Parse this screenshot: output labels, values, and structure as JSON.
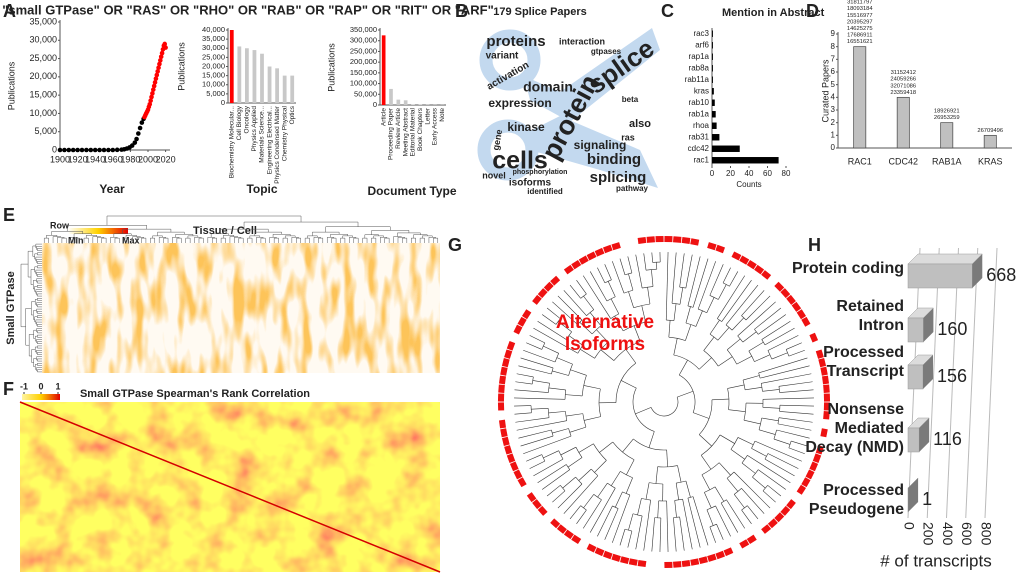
{
  "panels": [
    "A",
    "B",
    "C",
    "D",
    "E",
    "F",
    "G",
    "H"
  ],
  "chart_data": [
    {
      "type": "scatter",
      "title": "\"small GTPase\" OR \"RAS\" OR \"RHO\" OR \"RAB\" OR \"RAP\" OR \"RIT\" OR \"ARF\"",
      "x_label": "Year",
      "y_label": "Publications",
      "xlim": [
        1900,
        2025
      ],
      "xticks": [
        1900,
        1920,
        1940,
        1960,
        1980,
        2000,
        2020
      ],
      "ylim": [
        0,
        35000
      ],
      "yticks": [
        0,
        {
          "value": 5000,
          "label": "5,000"
        },
        {
          "value": 10000,
          "label": "10,000"
        },
        {
          "value": 15000,
          "label": "15,000"
        },
        {
          "value": 20000,
          "label": "20,000"
        },
        {
          "value": 25000,
          "label": "25,000"
        },
        {
          "value": 30000,
          "label": "30,000"
        },
        {
          "value": 35000,
          "label": "35,000"
        }
      ],
      "series": [
        {
          "color": "#000000",
          "x": [
            1900,
            1905,
            1910,
            1915,
            1920,
            1925,
            1930,
            1935,
            1940,
            1945,
            1950,
            1955,
            1960,
            1965,
            1970,
            1973,
            1976,
            1979,
            1982,
            1985,
            1987,
            1989,
            1991,
            1993,
            1995
          ],
          "values": [
            0,
            0,
            0,
            0,
            0,
            0,
            0,
            0,
            0,
            0,
            0,
            0,
            0,
            50,
            100,
            200,
            400,
            700,
            1200,
            2000,
            3000,
            4500,
            6000,
            7500,
            8500
          ]
        },
        {
          "color": "#ff0000",
          "x": [
            1996,
            1997,
            1998,
            1999,
            2000,
            2001,
            2002,
            2003,
            2004,
            2005,
            2006,
            2007,
            2008,
            2009,
            2010,
            2011,
            2012,
            2013,
            2014,
            2015,
            2016,
            2017,
            2018,
            2019,
            2020
          ],
          "values": [
            9000,
            9500,
            10000,
            10500,
            11000,
            11800,
            12500,
            13500,
            14500,
            15500,
            16500,
            17500,
            18500,
            19500,
            20500,
            21500,
            22500,
            23500,
            24500,
            25500,
            26500,
            27500,
            28500,
            29000,
            28000
          ]
        }
      ]
    },
    {
      "type": "bar",
      "x_label": "Topic",
      "y_label": "Publications",
      "categories": [
        "Biochemistry Molecular...",
        "Cell Biology",
        "Oncology",
        "Physics Applied",
        "Materials Science...",
        "Engineering Electrical...",
        "Physics Condensed Matter",
        "Chemistry Physical",
        "Optics"
      ],
      "values": [
        40000,
        31000,
        30000,
        29000,
        27000,
        20000,
        19000,
        15000,
        15000
      ],
      "colors": [
        "#ff0000",
        "#c8c8c8",
        "#c8c8c8",
        "#c8c8c8",
        "#c8c8c8",
        "#c8c8c8",
        "#c8c8c8",
        "#c8c8c8",
        "#c8c8c8"
      ],
      "ylim": [
        0,
        40000
      ],
      "yticks": [
        0,
        {
          "value": 5000,
          "label": "5,000"
        },
        {
          "value": 10000,
          "label": "10,000"
        },
        {
          "value": 15000,
          "label": "15,000"
        },
        {
          "value": 20000,
          "label": "20,000"
        },
        {
          "value": 25000,
          "label": "25,000"
        },
        {
          "value": 30000,
          "label": "30,000"
        },
        {
          "value": 35000,
          "label": "35,000"
        },
        {
          "value": 40000,
          "label": "40,000"
        }
      ]
    },
    {
      "type": "bar",
      "x_label": "Document Type",
      "y_label": "Publications",
      "categories": [
        "Article",
        "Proceeding Paper",
        "Review Article",
        "Meeting Abstract",
        "Editorial Material",
        "Book Chapters",
        "Letter",
        "Early Access",
        "Note"
      ],
      "values": [
        325000,
        75000,
        25000,
        22000,
        3000,
        2000,
        1500,
        1000,
        800
      ],
      "colors": [
        "#ff0000",
        "#c8c8c8",
        "#c8c8c8",
        "#c8c8c8",
        "#c8c8c8",
        "#c8c8c8",
        "#c8c8c8",
        "#c8c8c8",
        "#c8c8c8"
      ],
      "ylim": [
        0,
        350000
      ],
      "yticks": [
        0,
        {
          "value": 50000,
          "label": "50,000"
        },
        {
          "value": 100000,
          "label": "100,000"
        },
        {
          "value": 150000,
          "label": "150,000"
        },
        {
          "value": 200000,
          "label": "200,000"
        },
        {
          "value": 250000,
          "label": "250,000"
        },
        {
          "value": 300000,
          "label": "300,000"
        },
        {
          "value": 350000,
          "label": "350,000"
        }
      ]
    },
    {
      "type": "wordcloud",
      "title": "179 Splice Papers",
      "words": [
        "protein",
        "splice",
        "cells",
        "binding",
        "splicing",
        "domain",
        "proteins",
        "expression",
        "kinase",
        "signaling",
        "isoforms",
        "activation",
        "variant",
        "novel",
        "also",
        "identified",
        "interaction",
        "ras",
        "gene",
        "phosphorylation",
        "gtpases",
        "beta",
        "pathway"
      ]
    },
    {
      "type": "hbar",
      "title": "Mention in Abstract",
      "x_label": "Counts",
      "categories": [
        "rac3",
        "arf6",
        "rap1a",
        "rab8a",
        "rab11a",
        "kras",
        "rab10",
        "rab1a",
        "rhoa",
        "rab31",
        "cdc42",
        "rac1"
      ],
      "values": [
        1,
        1,
        1,
        1,
        1,
        2,
        3,
        4,
        5,
        8,
        30,
        72
      ],
      "color": "#000000",
      "xlim": [
        0,
        80
      ],
      "xticks": [
        0,
        20,
        40,
        60,
        80
      ]
    },
    {
      "type": "bar",
      "y_label": "Curated Papers",
      "categories": [
        "RAC1",
        "CDC42",
        "RAB1A",
        "KRAS"
      ],
      "values": [
        8,
        4,
        2,
        1
      ],
      "color": "#c0c0c0",
      "ylim": [
        0,
        9
      ],
      "yticks": [
        0,
        1,
        2,
        3,
        4,
        5,
        6,
        7,
        8,
        9
      ],
      "pmid_color": "#ff0000",
      "pmids": [
        [
          "22430205",
          "31811797",
          "18093184",
          "15516977",
          "20395297",
          "14625275",
          "17686911",
          "16551621"
        ],
        [
          "31152412",
          "24059266",
          "32071086",
          "23359418"
        ],
        [
          "18926921",
          "26953259"
        ],
        [
          "26709496"
        ]
      ]
    },
    {
      "type": "heatmap",
      "title": "Tissue / Cell",
      "y_label": "Small GTPase",
      "legend_labels": [
        "Row",
        "Min",
        "Max"
      ]
    },
    {
      "type": "heatmap",
      "title": "Small GTPase Spearman's Rank Correlation",
      "colorbar_ticks": [
        -1,
        0,
        1
      ]
    },
    {
      "type": "tree",
      "label": "Alternative Isoforms"
    },
    {
      "type": "hbar3d",
      "x_label": "# of transcripts",
      "categories": [
        "Protein coding",
        "Retained Intron",
        "Processed Transcript",
        "Nonsense Mediated Decay (NMD)",
        "Processed Pseudogene"
      ],
      "values": [
        668,
        160,
        156,
        116,
        1
      ],
      "xlim": [
        0,
        800
      ],
      "xticks": [
        0,
        200,
        400,
        600,
        800
      ]
    }
  ]
}
